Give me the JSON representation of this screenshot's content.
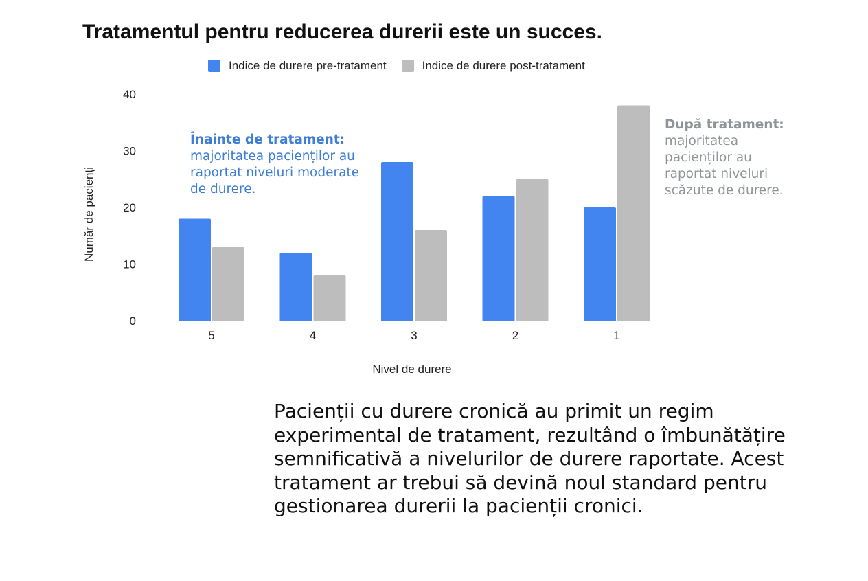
{
  "chart_data": {
    "type": "bar",
    "title": "Tratamentul pentru reducerea durerii este un succes.",
    "xlabel": "Nivel de durere",
    "ylabel": "Număr de pacienți",
    "categories": [
      "5",
      "4",
      "3",
      "2",
      "1"
    ],
    "series": [
      {
        "name": "Indice de durere pre-tratament",
        "values": [
          18,
          12,
          28,
          22,
          20
        ],
        "color": "#4285f0"
      },
      {
        "name": "Indice de durere post-tratament",
        "values": [
          13,
          8,
          16,
          25,
          38
        ],
        "color": "#bdbdbd"
      }
    ],
    "ylim": [
      0,
      40
    ],
    "yticks": [
      0,
      10,
      20,
      30,
      40
    ],
    "grid": false,
    "legend_position": "top",
    "annotations": [
      {
        "heading": "Înainte de tratament:",
        "text": "majoritatea pacienților au raportat niveluri moderate de durere.",
        "color": "#3f7ed6"
      },
      {
        "heading": "După tratament:",
        "text": "majoritatea pacienților au raportat niveluri scăzute de durere.",
        "color": "#8e9498"
      }
    ]
  },
  "caption": "Pacienții cu durere cronică au primit un regim experimental de tratament, rezultând o îmbunătățire semnificativă a nivelurilor de durere raportate. Acest tratament ar trebui să devină noul standard pentru gestionarea durerii la pacienții cronici."
}
